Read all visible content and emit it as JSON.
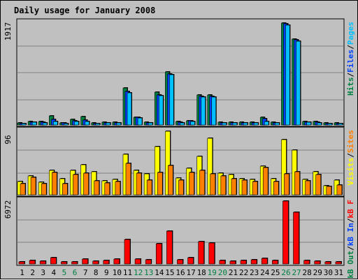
{
  "title": "Daily usage for January 2008",
  "panels": [
    {
      "max_label": "1917",
      "legend": [
        {
          "text": "Hits",
          "color": "#008040"
        },
        {
          "text": "/",
          "color": "#000000"
        },
        {
          "text": "Files",
          "color": "#0040ff"
        },
        {
          "text": "/",
          "color": "#000000"
        },
        {
          "text": "Pages",
          "color": "#00c0ff"
        }
      ]
    },
    {
      "max_label": "96",
      "legend": [
        {
          "text": "Visits",
          "color": "#ffff00"
        },
        {
          "text": "/",
          "color": "#000000"
        },
        {
          "text": "Sites",
          "color": "#ff8000"
        }
      ]
    },
    {
      "max_label": "6972",
      "legend": [
        {
          "text": "kB Out",
          "color": "#008040"
        },
        {
          "text": "/",
          "color": "#000000"
        },
        {
          "text": "kB In",
          "color": "#0040ff"
        },
        {
          "text": "/",
          "color": "#000000"
        },
        {
          "text": "kB F",
          "color": "#ff0000"
        }
      ]
    }
  ],
  "x_labels": [
    "1",
    "2",
    "3",
    "4",
    "5",
    "6",
    "7",
    "8",
    "9",
    "10",
    "11",
    "12",
    "13",
    "14",
    "15",
    "16",
    "17",
    "18",
    "19",
    "20",
    "21",
    "22",
    "23",
    "24",
    "25",
    "26",
    "27",
    "28",
    "29",
    "30",
    "31"
  ],
  "weekend_days": [
    5,
    6,
    12,
    13,
    19,
    20,
    26,
    27
  ],
  "colors": {
    "background": "#c0c0c0",
    "title": "#0000ff",
    "weekday_label": "#000000",
    "weekend_label": "#008040",
    "hits": "#008040",
    "files": "#0040ff",
    "pages": "#00c0ff",
    "visits": "#ffff00",
    "sites": "#ff8000",
    "kbf": "#ff0000"
  },
  "chart_data": [
    {
      "type": "bar",
      "categories": [
        "1",
        "2",
        "3",
        "4",
        "5",
        "6",
        "7",
        "8",
        "9",
        "10",
        "11",
        "12",
        "13",
        "14",
        "15",
        "16",
        "17",
        "18",
        "19",
        "20",
        "21",
        "22",
        "23",
        "24",
        "25",
        "26",
        "27",
        "28",
        "29",
        "30",
        "31"
      ],
      "ylim": [
        0,
        1917
      ],
      "series": [
        {
          "name": "Hits",
          "values": [
            38,
            65,
            60,
            175,
            45,
            110,
            160,
            40,
            48,
            55,
            690,
            150,
            55,
            620,
            1000,
            60,
            85,
            570,
            560,
            55,
            50,
            55,
            55,
            150,
            55,
            1917,
            1620,
            65,
            60,
            38,
            40
          ]
        },
        {
          "name": "Files",
          "values": [
            30,
            55,
            50,
            100,
            35,
            80,
            95,
            32,
            40,
            45,
            630,
            140,
            45,
            570,
            960,
            50,
            75,
            540,
            540,
            45,
            40,
            45,
            45,
            115,
            45,
            1900,
            1600,
            55,
            50,
            30,
            32
          ]
        },
        {
          "name": "Pages",
          "values": [
            25,
            50,
            45,
            70,
            30,
            65,
            70,
            28,
            35,
            40,
            600,
            130,
            40,
            550,
            940,
            45,
            70,
            520,
            520,
            40,
            35,
            40,
            40,
            60,
            40,
            1880,
            1580,
            50,
            45,
            25,
            28
          ]
        }
      ]
    },
    {
      "type": "bar",
      "categories": [
        "1",
        "2",
        "3",
        "4",
        "5",
        "6",
        "7",
        "8",
        "9",
        "10",
        "11",
        "12",
        "13",
        "14",
        "15",
        "16",
        "17",
        "18",
        "19",
        "20",
        "21",
        "22",
        "23",
        "24",
        "25",
        "26",
        "27",
        "28",
        "29",
        "30",
        "31"
      ],
      "ylim": [
        0,
        96
      ],
      "series": [
        {
          "name": "Visits",
          "values": [
            20,
            29,
            19,
            37,
            24,
            37,
            45,
            35,
            21,
            23,
            61,
            37,
            32,
            73,
            96,
            25,
            40,
            58,
            85,
            33,
            31,
            24,
            23,
            43,
            24,
            83,
            67,
            23,
            35,
            14,
            22
          ]
        },
        {
          "name": "Sites",
          "values": [
            17,
            26,
            17,
            34,
            17,
            31,
            33,
            21,
            18,
            20,
            47,
            33,
            22,
            34,
            44,
            22,
            34,
            37,
            32,
            29,
            24,
            22,
            20,
            41,
            20,
            32,
            35,
            21,
            31,
            13,
            15
          ]
        }
      ]
    },
    {
      "type": "bar",
      "categories": [
        "1",
        "2",
        "3",
        "4",
        "5",
        "6",
        "7",
        "8",
        "9",
        "10",
        "11",
        "12",
        "13",
        "14",
        "15",
        "16",
        "17",
        "18",
        "19",
        "20",
        "21",
        "22",
        "23",
        "24",
        "25",
        "26",
        "27",
        "28",
        "29",
        "30",
        "31"
      ],
      "ylim": [
        0,
        6972
      ],
      "series": [
        {
          "name": "kB F",
          "values": [
            260,
            420,
            300,
            730,
            210,
            250,
            530,
            300,
            410,
            540,
            2720,
            540,
            440,
            2280,
            3640,
            470,
            720,
            2450,
            2290,
            410,
            320,
            350,
            500,
            620,
            350,
            6972,
            5760,
            410,
            300,
            230,
            240
          ]
        }
      ]
    }
  ]
}
